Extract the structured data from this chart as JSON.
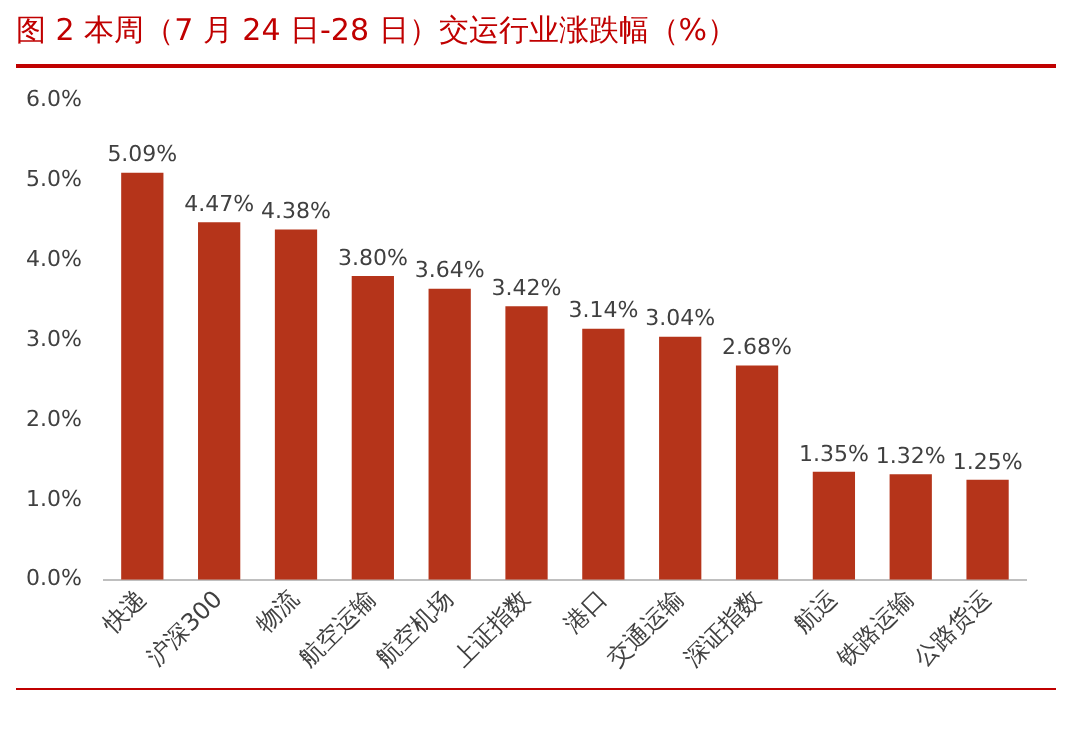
{
  "chart_data": {
    "type": "bar",
    "title": "图 2   本周（7 月 24 日-28 日）交运行业涨跌幅（%）",
    "categories": [
      "快递",
      "沪深300",
      "物流",
      "航空运输",
      "航空机场",
      "上证指数",
      "港口",
      "交通运输",
      "深证指数",
      "航运",
      "铁路运输",
      "公路货运"
    ],
    "values": [
      5.09,
      4.47,
      4.38,
      3.8,
      3.64,
      3.42,
      3.14,
      3.04,
      2.68,
      1.35,
      1.32,
      1.25
    ],
    "value_labels": [
      "5.09%",
      "4.47%",
      "4.38%",
      "3.80%",
      "3.64%",
      "3.42%",
      "3.14%",
      "3.04%",
      "2.68%",
      "1.35%",
      "1.32%",
      "1.25%"
    ],
    "color": "#b5341a",
    "ylim": [
      0,
      6
    ],
    "yticks": [
      {
        "value": 0,
        "label": "0.0%"
      },
      {
        "value": 1,
        "label": "1.0%"
      },
      {
        "value": 2,
        "label": "2.0%"
      },
      {
        "value": 3,
        "label": "3.0%"
      },
      {
        "value": 4,
        "label": "4.0%"
      },
      {
        "value": 5,
        "label": "5.0%"
      },
      {
        "value": 6,
        "label": "6.0%"
      }
    ],
    "grid": false,
    "legend": false
  }
}
